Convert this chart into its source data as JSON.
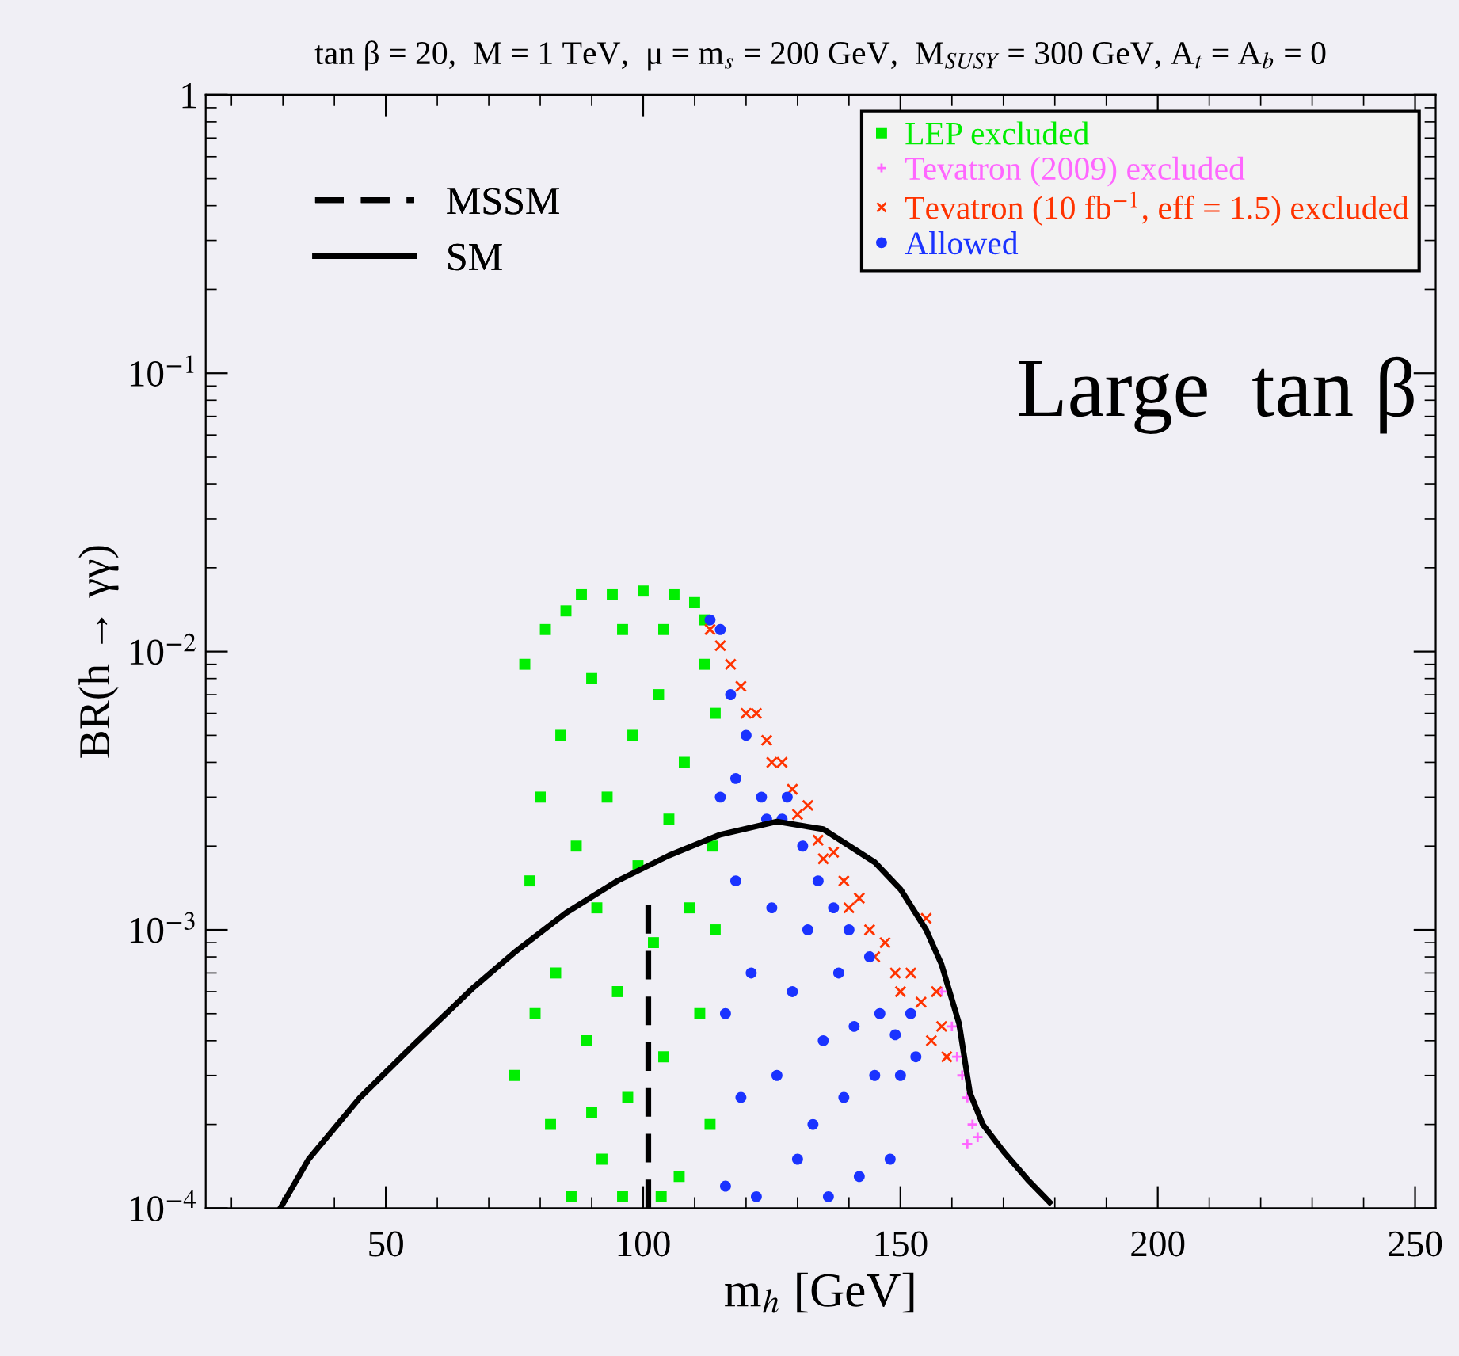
{
  "chart_data": {
    "type": "scatter",
    "title": "tan β = 20,  M = 1 TeV,  μ = m$_{s}$ = 200 GeV,  M$_{SUSY}$ = 300 GeV, A$_{t}$ = A$_{b}$ = 0",
    "xlabel": "m$_{h}$ [GeV]",
    "ylabel": "BR(h → γγ)",
    "annotations": [
      "Large  tan β"
    ],
    "log": "y",
    "xlim": [
      15,
      254
    ],
    "ylim": [
      0.0001,
      1
    ],
    "xticks": [
      50,
      100,
      150,
      200,
      250
    ],
    "yticks": [
      {
        "value": 0.0001,
        "label": "10$^{−4}$"
      },
      {
        "value": 0.001,
        "label": "10$^{−3}$"
      },
      {
        "value": 0.01,
        "label": "10$^{−2}$"
      },
      {
        "value": 0.1,
        "label": "10$^{−1}$"
      },
      1
    ],
    "grid": false,
    "legend": "top right",
    "series": [
      {
        "name": "LEP excluded",
        "color": "#00ee00",
        "marker": "square",
        "x": [
          75,
          77,
          78,
          79,
          80,
          81,
          82,
          83,
          84,
          85,
          86,
          87,
          88,
          89,
          90,
          91,
          92,
          93,
          94,
          95,
          96,
          97,
          98,
          99,
          100,
          103.5,
          102,
          103,
          104,
          105,
          106,
          107,
          108,
          109,
          110,
          111,
          112,
          113,
          113.5,
          114,
          114,
          112,
          90,
          96,
          104
        ],
        "values": [
          0.0003,
          0.009,
          0.0015,
          0.0005,
          0.003,
          0.012,
          0.0002,
          0.0007,
          0.005,
          0.014,
          0.00011,
          0.002,
          0.016,
          0.0004,
          0.008,
          0.0012,
          0.00015,
          0.003,
          0.016,
          0.0006,
          0.012,
          0.00025,
          0.005,
          0.0017,
          0.0165,
          0.00011,
          0.0009,
          0.007,
          0.00035,
          0.0025,
          0.016,
          0.00013,
          0.004,
          0.0012,
          0.015,
          0.0005,
          0.009,
          0.0002,
          0.002,
          0.006,
          0.001,
          0.013,
          0.00022,
          0.00011,
          0.012
        ]
      },
      {
        "name": "Tevatron (2009) excluded",
        "color": "#ff66ff",
        "marker": "cross",
        "x": [
          158,
          160,
          161,
          162,
          163,
          164,
          165,
          163
        ],
        "values": [
          0.0006,
          0.00045,
          0.00035,
          0.0003,
          0.00025,
          0.0002,
          0.00018,
          0.00017
        ]
      },
      {
        "name": "Tevatron (10 fb$^{−1}$, eff = 1.5) excluded",
        "color": "#ff3300",
        "marker": "x",
        "x": [
          113,
          115,
          117,
          119,
          120,
          122,
          124,
          125,
          127,
          129,
          130,
          132,
          134,
          135,
          137,
          139,
          140,
          142,
          144,
          145,
          147,
          149,
          150,
          152,
          154,
          155,
          156,
          157,
          158,
          159
        ],
        "values": [
          0.012,
          0.0105,
          0.009,
          0.0075,
          0.006,
          0.006,
          0.0048,
          0.004,
          0.004,
          0.0032,
          0.0026,
          0.0028,
          0.0021,
          0.0018,
          0.0019,
          0.0015,
          0.0012,
          0.0013,
          0.001,
          0.0008,
          0.0009,
          0.0007,
          0.0006,
          0.0007,
          0.00055,
          0.0011,
          0.0004,
          0.0006,
          0.00045,
          0.00035
        ]
      },
      {
        "name": "Allowed",
        "color": "#1a33ff",
        "marker": "circle",
        "x": [
          115,
          115,
          116,
          116,
          117,
          118,
          119,
          120,
          121,
          122,
          123,
          124,
          125,
          126,
          127,
          128,
          129,
          130,
          131,
          132,
          133,
          134,
          135,
          136,
          137,
          138,
          139,
          140,
          141,
          142,
          144,
          145,
          146,
          148,
          149,
          150,
          152,
          153,
          113,
          118
        ],
        "values": [
          0.012,
          0.003,
          0.0005,
          0.00012,
          0.007,
          0.0015,
          0.00025,
          0.005,
          0.0007,
          0.00011,
          0.003,
          0.0025,
          0.0012,
          0.0003,
          0.0025,
          0.003,
          0.0006,
          0.00015,
          0.002,
          0.001,
          0.0002,
          0.0015,
          0.0004,
          0.00011,
          0.0012,
          0.0007,
          0.00025,
          0.001,
          0.00045,
          0.00013,
          0.0008,
          0.0003,
          0.0005,
          0.00015,
          0.00042,
          0.0003,
          0.0005,
          0.00035,
          0.013,
          0.0035
        ]
      },
      {
        "name": "MSSM",
        "type": "line",
        "color": "#000000",
        "line_style": "dashed",
        "marker": "none",
        "x": [
          101,
          101
        ],
        "values": [
          0.0001,
          0.0013
        ]
      },
      {
        "name": "SM",
        "type": "line",
        "color": "#000000",
        "line_style": "solid",
        "marker": "none",
        "x": [
          29.5,
          35,
          45,
          55,
          67,
          75,
          85,
          95,
          105,
          115,
          126,
          135,
          145,
          150,
          155,
          158,
          161.4,
          163.5,
          166,
          170,
          175,
          179
        ],
        "values": [
          0.0001,
          0.00015,
          0.00025,
          0.00038,
          0.00062,
          0.00083,
          0.00115,
          0.0015,
          0.00185,
          0.0022,
          0.00245,
          0.0023,
          0.00175,
          0.0014,
          0.001,
          0.00075,
          0.00046,
          0.00026,
          0.0002,
          0.00016,
          0.000125,
          0.000105
        ]
      }
    ]
  }
}
